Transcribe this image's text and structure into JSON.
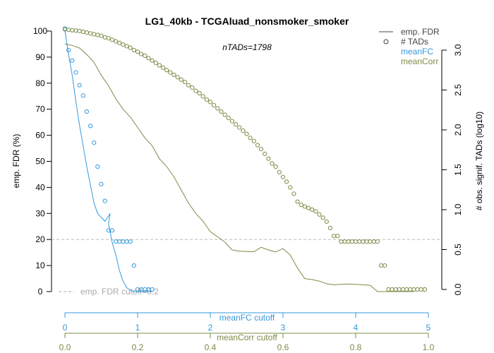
{
  "chart_data": {
    "type": "line",
    "title": "LG1_40kb - TCGAluad_nonsmoker_smoker",
    "subtitle": "nTADs=1798",
    "ylabel": "emp. FDR (%)",
    "ylabel_right": "# obs. signif. TADs (log10)",
    "xlabel_fc": "meanFC cutoff",
    "xlabel_corr": "meanCorr cutoff",
    "fdr_threshold": 20,
    "fdr_threshold_label": "emp. FDR cutoff=0.2",
    "ylim": [
      0,
      100
    ],
    "ylim_right": [
      0,
      3.0
    ],
    "xlim_fc": [
      0,
      5
    ],
    "xlim_corr": [
      0,
      1.0
    ],
    "colors": {
      "fc": "#3399dd",
      "corr": "#7a8c46",
      "legend_fdr": "#444444",
      "threshold": "#bbbbbb",
      "threshold_text": "#aaaaaa"
    },
    "y_ticks": [
      0,
      10,
      20,
      30,
      40,
      50,
      60,
      70,
      80,
      90,
      100
    ],
    "y_tick_labels": [
      "0",
      "10",
      "20",
      "30",
      "40",
      "50",
      "60",
      "70",
      "80",
      "90",
      "100"
    ],
    "y_right_ticks": [
      0,
      0.5,
      1.0,
      1.5,
      2.0,
      2.5,
      3.0
    ],
    "y_right_tick_labels": [
      "0.0",
      "0.5",
      "1.0",
      "1.5",
      "2.0",
      "2.5",
      "3.0"
    ],
    "x_fc_ticks": [
      0,
      1,
      2,
      3,
      4,
      5
    ],
    "x_fc_tick_labels": [
      "0",
      "1",
      "2",
      "3",
      "4",
      "5"
    ],
    "x_corr_ticks": [
      0,
      0.2,
      0.4,
      0.6,
      0.8,
      1.0
    ],
    "x_corr_tick_labels": [
      "0.0",
      "0.2",
      "0.4",
      "0.6",
      "0.8",
      "1.0"
    ],
    "legend": {
      "position": "top-right",
      "items": [
        {
          "label": "emp. FDR",
          "kind": "line",
          "color": "legend_fdr"
        },
        {
          "label": "# TADs",
          "kind": "circle",
          "color": "legend_fdr"
        },
        {
          "label": "meanFC",
          "kind": "text",
          "color": "fc"
        },
        {
          "label": "meanCorr",
          "kind": "text",
          "color": "corr"
        }
      ]
    },
    "series": [
      {
        "name": "meanFC",
        "axis": "fc",
        "fdr_line": [
          [
            0,
            100
          ],
          [
            0.05,
            91
          ],
          [
            0.1,
            83
          ],
          [
            0.15,
            73
          ],
          [
            0.2,
            64
          ],
          [
            0.25,
            56
          ],
          [
            0.3,
            48
          ],
          [
            0.35,
            41
          ],
          [
            0.4,
            34
          ],
          [
            0.45,
            30
          ],
          [
            0.5,
            28.5
          ],
          [
            0.55,
            27
          ],
          [
            0.6,
            29
          ],
          [
            0.62,
            30
          ],
          [
            0.6,
            26
          ],
          [
            0.65,
            19
          ],
          [
            0.7,
            14
          ],
          [
            0.75,
            8
          ],
          [
            0.8,
            4
          ],
          [
            0.85,
            1.5
          ],
          [
            0.9,
            0.5
          ],
          [
            0.95,
            0
          ],
          [
            1.2,
            0
          ]
        ],
        "tads": [
          [
            0,
            3.27
          ],
          [
            0.05,
            3.0
          ],
          [
            0.1,
            2.87
          ],
          [
            0.15,
            2.72
          ],
          [
            0.2,
            2.56
          ],
          [
            0.25,
            2.43
          ],
          [
            0.3,
            2.23
          ],
          [
            0.35,
            2.05
          ],
          [
            0.4,
            1.84
          ],
          [
            0.45,
            1.54
          ],
          [
            0.5,
            1.32
          ],
          [
            0.55,
            1.11
          ],
          [
            0.6,
            0.74
          ],
          [
            0.65,
            0.74
          ],
          [
            0.7,
            0.6
          ],
          [
            0.75,
            0.6
          ],
          [
            0.8,
            0.6
          ],
          [
            0.85,
            0.6
          ],
          [
            0.9,
            0.6
          ],
          [
            0.95,
            0.3
          ],
          [
            1.0,
            0
          ],
          [
            1.05,
            0
          ],
          [
            1.1,
            0
          ],
          [
            1.15,
            0
          ],
          [
            1.2,
            0
          ]
        ]
      },
      {
        "name": "meanCorr",
        "axis": "corr",
        "fdr_line": [
          [
            0,
            95
          ],
          [
            0.02,
            94.5
          ],
          [
            0.04,
            93.5
          ],
          [
            0.06,
            91
          ],
          [
            0.08,
            88
          ],
          [
            0.1,
            83
          ],
          [
            0.12,
            79
          ],
          [
            0.14,
            74
          ],
          [
            0.16,
            70
          ],
          [
            0.18,
            67
          ],
          [
            0.2,
            63
          ],
          [
            0.22,
            59
          ],
          [
            0.24,
            56
          ],
          [
            0.26,
            51
          ],
          [
            0.28,
            48
          ],
          [
            0.3,
            44
          ],
          [
            0.32,
            39
          ],
          [
            0.34,
            34
          ],
          [
            0.36,
            30
          ],
          [
            0.38,
            27
          ],
          [
            0.4,
            23
          ],
          [
            0.42,
            21
          ],
          [
            0.44,
            19
          ],
          [
            0.46,
            16
          ],
          [
            0.48,
            15.5
          ],
          [
            0.5,
            15.4
          ],
          [
            0.52,
            15.3
          ],
          [
            0.54,
            17
          ],
          [
            0.56,
            16
          ],
          [
            0.58,
            15.2
          ],
          [
            0.6,
            16.5
          ],
          [
            0.62,
            14
          ],
          [
            0.64,
            9
          ],
          [
            0.66,
            5
          ],
          [
            0.68,
            4.6
          ],
          [
            0.7,
            4
          ],
          [
            0.72,
            3
          ],
          [
            0.74,
            2.6
          ],
          [
            0.76,
            2.8
          ],
          [
            0.78,
            2.9
          ],
          [
            0.8,
            2.8
          ],
          [
            0.82,
            2.6
          ],
          [
            0.84,
            2.4
          ],
          [
            0.86,
            0
          ],
          [
            0.96,
            0
          ]
        ],
        "tads": [
          [
            0,
            3.26
          ],
          [
            0.01,
            3.255
          ],
          [
            0.02,
            3.25
          ],
          [
            0.03,
            3.245
          ],
          [
            0.04,
            3.24
          ],
          [
            0.05,
            3.23
          ],
          [
            0.06,
            3.22
          ],
          [
            0.07,
            3.21
          ],
          [
            0.08,
            3.2
          ],
          [
            0.09,
            3.19
          ],
          [
            0.1,
            3.18
          ],
          [
            0.11,
            3.16
          ],
          [
            0.12,
            3.15
          ],
          [
            0.13,
            3.13
          ],
          [
            0.14,
            3.11
          ],
          [
            0.15,
            3.09
          ],
          [
            0.16,
            3.07
          ],
          [
            0.17,
            3.05
          ],
          [
            0.18,
            3.03
          ],
          [
            0.19,
            3.0
          ],
          [
            0.2,
            2.98
          ],
          [
            0.21,
            2.95
          ],
          [
            0.22,
            2.93
          ],
          [
            0.23,
            2.9
          ],
          [
            0.24,
            2.87
          ],
          [
            0.25,
            2.84
          ],
          [
            0.26,
            2.81
          ],
          [
            0.27,
            2.78
          ],
          [
            0.28,
            2.75
          ],
          [
            0.29,
            2.72
          ],
          [
            0.3,
            2.69
          ],
          [
            0.31,
            2.66
          ],
          [
            0.32,
            2.63
          ],
          [
            0.33,
            2.6
          ],
          [
            0.34,
            2.56
          ],
          [
            0.35,
            2.53
          ],
          [
            0.36,
            2.49
          ],
          [
            0.37,
            2.46
          ],
          [
            0.38,
            2.42
          ],
          [
            0.39,
            2.38
          ],
          [
            0.4,
            2.35
          ],
          [
            0.41,
            2.31
          ],
          [
            0.42,
            2.27
          ],
          [
            0.43,
            2.23
          ],
          [
            0.44,
            2.19
          ],
          [
            0.45,
            2.15
          ],
          [
            0.46,
            2.11
          ],
          [
            0.47,
            2.07
          ],
          [
            0.48,
            2.03
          ],
          [
            0.49,
            1.99
          ],
          [
            0.5,
            1.95
          ],
          [
            0.51,
            1.9
          ],
          [
            0.52,
            1.86
          ],
          [
            0.53,
            1.81
          ],
          [
            0.54,
            1.76
          ],
          [
            0.55,
            1.7
          ],
          [
            0.56,
            1.64
          ],
          [
            0.57,
            1.58
          ],
          [
            0.58,
            1.54
          ],
          [
            0.59,
            1.47
          ],
          [
            0.6,
            1.41
          ],
          [
            0.61,
            1.35
          ],
          [
            0.62,
            1.28
          ],
          [
            0.63,
            1.2
          ],
          [
            0.64,
            1.1
          ],
          [
            0.65,
            1.06
          ],
          [
            0.66,
            1.04
          ],
          [
            0.67,
            1.02
          ],
          [
            0.68,
            1.0
          ],
          [
            0.69,
            0.98
          ],
          [
            0.7,
            0.94
          ],
          [
            0.71,
            0.9
          ],
          [
            0.72,
            0.85
          ],
          [
            0.73,
            0.77
          ],
          [
            0.74,
            0.67
          ],
          [
            0.75,
            0.67
          ],
          [
            0.76,
            0.6
          ],
          [
            0.77,
            0.6
          ],
          [
            0.78,
            0.6
          ],
          [
            0.79,
            0.6
          ],
          [
            0.8,
            0.6
          ],
          [
            0.81,
            0.6
          ],
          [
            0.82,
            0.6
          ],
          [
            0.83,
            0.6
          ],
          [
            0.84,
            0.6
          ],
          [
            0.85,
            0.6
          ],
          [
            0.86,
            0.6
          ],
          [
            0.87,
            0.3
          ],
          [
            0.88,
            0.3
          ],
          [
            0.89,
            0
          ],
          [
            0.9,
            0
          ],
          [
            0.91,
            0
          ],
          [
            0.92,
            0
          ],
          [
            0.93,
            0
          ],
          [
            0.94,
            0
          ],
          [
            0.95,
            0
          ],
          [
            0.96,
            0
          ],
          [
            0.97,
            0
          ],
          [
            0.98,
            0
          ],
          [
            0.99,
            0
          ]
        ]
      }
    ]
  }
}
